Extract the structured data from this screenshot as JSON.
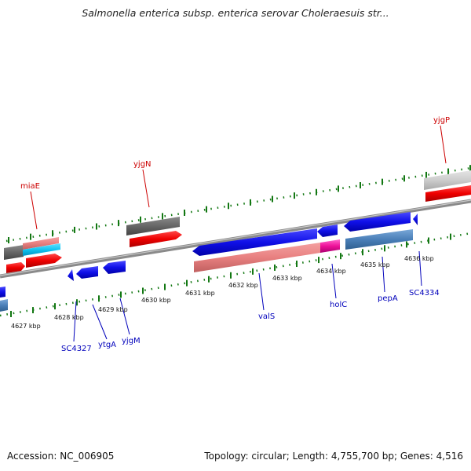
{
  "title": "Salmonella enterica subsp. enterica serovar Choleraesuis str...",
  "footer": {
    "accession": "Accession: NC_006905",
    "summary": "Topology: circular; Length: 4,755,700 bp; Genes: 4,516"
  },
  "colors": {
    "forward_label": "#cc0000",
    "reverse_label": "#0000bb",
    "tick": "#127712",
    "backbone": "#8a8a8a"
  },
  "scale": {
    "unit": "kbp",
    "labels": [
      "4627 kbp",
      "4628 kbp",
      "4629 kbp",
      "4630 kbp",
      "4631 kbp",
      "4632 kbp",
      "4633 kbp",
      "4634 kbp",
      "4635 kbp",
      "4636 kbp"
    ]
  },
  "genes": {
    "forward": [
      {
        "name": "miaE"
      },
      {
        "name": "yjgN"
      },
      {
        "name": "yjgP"
      }
    ],
    "reverse": [
      {
        "name": "SC4327"
      },
      {
        "name": "ytgA"
      },
      {
        "name": "yjgM"
      },
      {
        "name": "valS"
      },
      {
        "name": "holC"
      },
      {
        "name": "pepA"
      },
      {
        "name": "SC4334"
      }
    ]
  }
}
